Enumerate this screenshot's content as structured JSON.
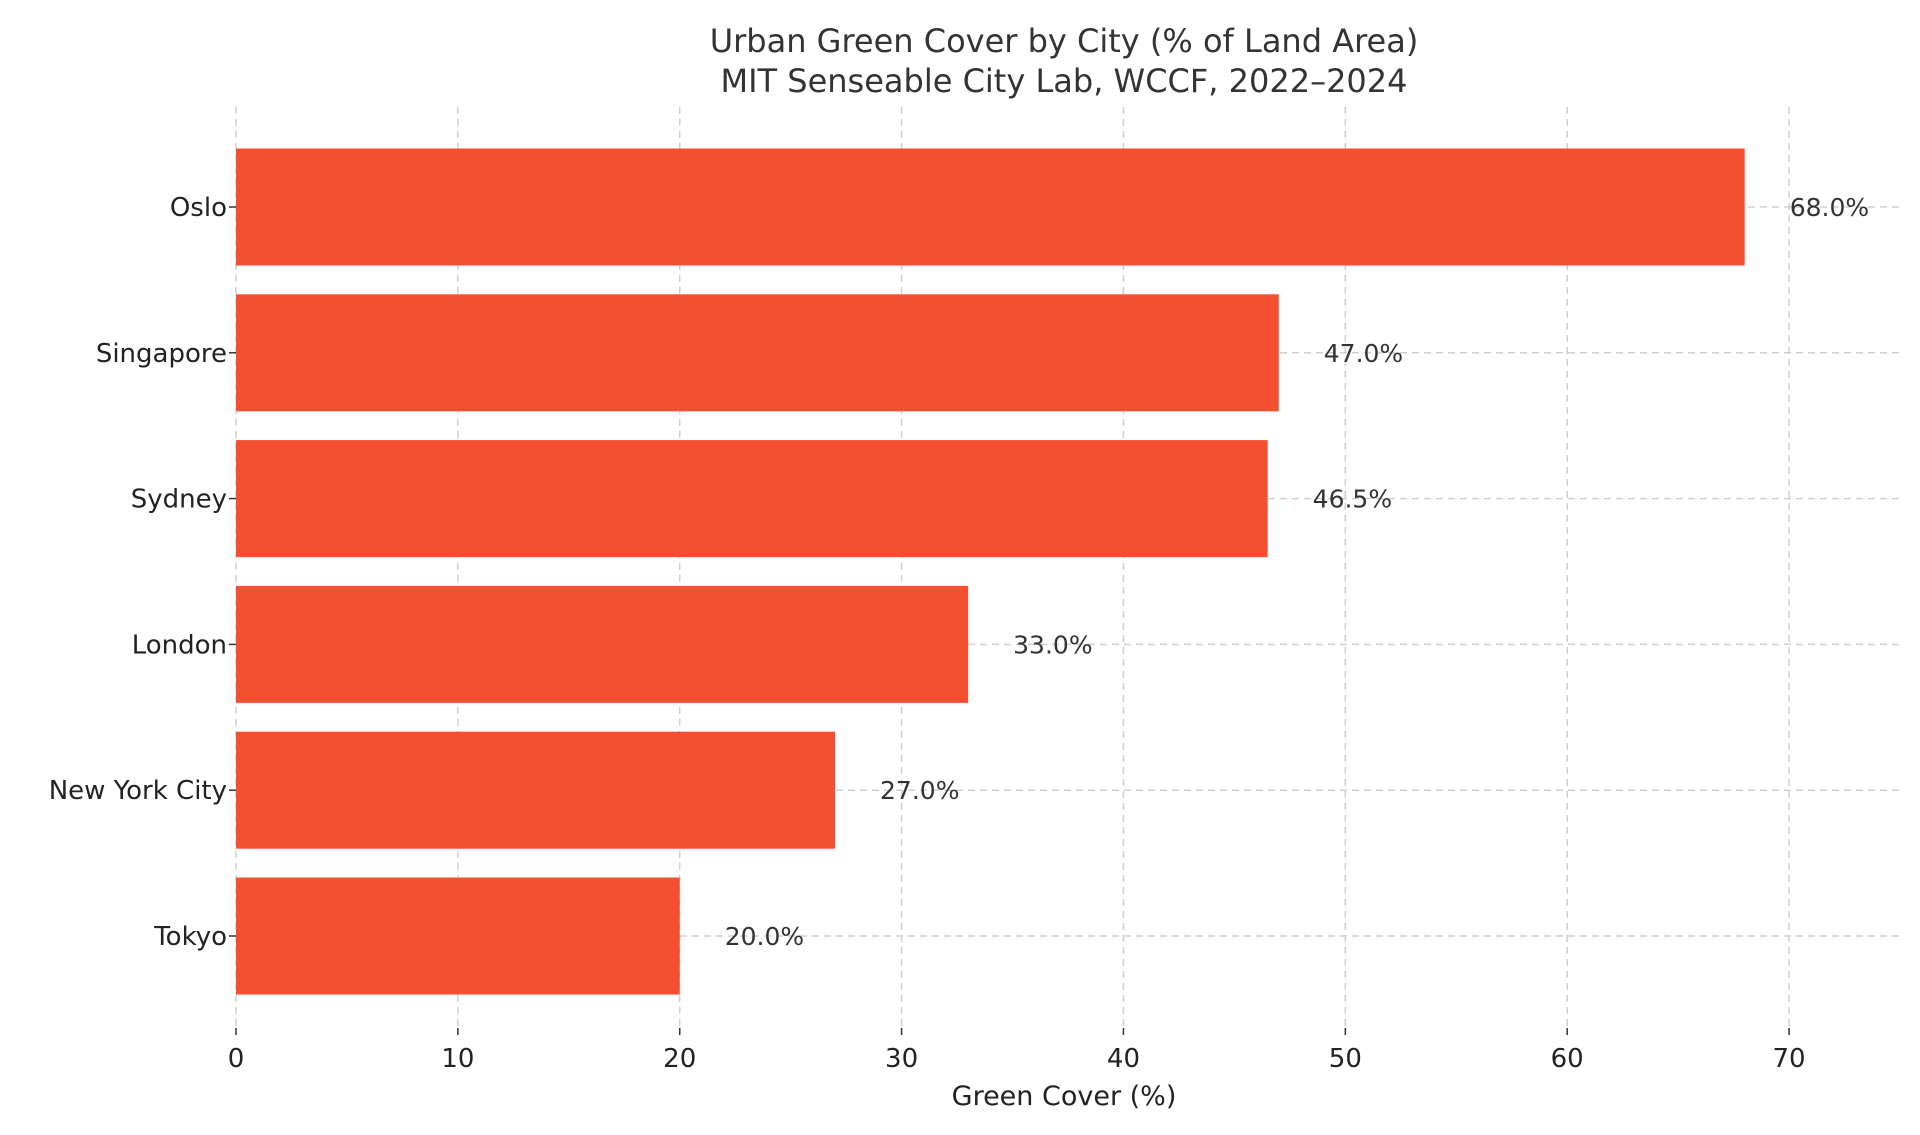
{
  "chart_data": {
    "type": "bar",
    "orientation": "horizontal",
    "title": "Urban Green Cover by City (% of Land Area)",
    "subtitle": "MIT Senseable City Lab, WCCF, 2022–2024",
    "xlabel": "Green Cover (%)",
    "ylabel": "",
    "categories": [
      "Oslo",
      "Singapore",
      "Sydney",
      "London",
      "New York City",
      "Tokyo"
    ],
    "values": [
      68.0,
      47.0,
      46.5,
      33.0,
      27.0,
      20.0
    ],
    "value_labels": [
      "68.0%",
      "47.0%",
      "46.5%",
      "33.0%",
      "27.0%",
      "20.0%"
    ],
    "xlim": [
      0,
      75
    ],
    "xticks": [
      0,
      10,
      20,
      30,
      40,
      50,
      60,
      70
    ],
    "xtick_labels": [
      "0",
      "10",
      "20",
      "30",
      "40",
      "50",
      "60",
      "70"
    ],
    "grid": true,
    "legend": "none",
    "colors": {
      "bar": "#f44f30",
      "grid": "#cfcfcf",
      "text": "#222222"
    }
  }
}
